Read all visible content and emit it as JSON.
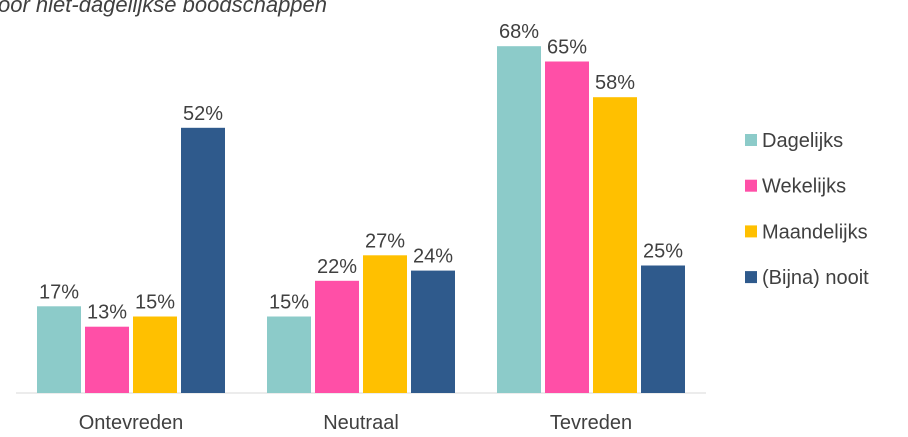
{
  "chart_data": {
    "type": "bar",
    "title": "oor niet-dagelijkse boodschappen",
    "categories": [
      "Ontevreden",
      "Neutraal",
      "Tevreden"
    ],
    "series": [
      {
        "name": "Dagelijks",
        "color": "#8ccbc9",
        "values": [
          17,
          15,
          68
        ],
        "value_labels": [
          "17%",
          "15%",
          "68%"
        ]
      },
      {
        "name": "Wekelijks",
        "color": "#ff4fa7",
        "values": [
          13,
          22,
          65
        ],
        "value_labels": [
          "13%",
          "22%",
          "65%"
        ]
      },
      {
        "name": "Maandelijks",
        "color": "#ffc000",
        "values": [
          15,
          27,
          58
        ],
        "value_labels": [
          "15%",
          "27%",
          "58%"
        ]
      },
      {
        "name": "(Bijna) nooit",
        "color": "#2f5a8c",
        "values": [
          52,
          24,
          25
        ],
        "value_labels": [
          "52%",
          "24%",
          "25%"
        ]
      }
    ],
    "legend": "right"
  }
}
